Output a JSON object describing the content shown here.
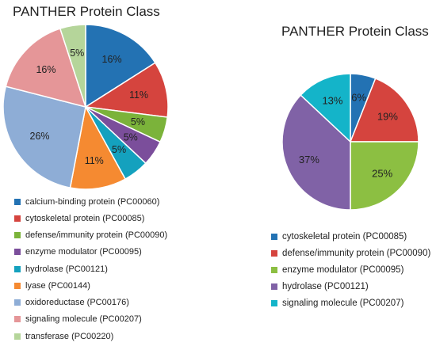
{
  "chart_data": [
    {
      "type": "pie",
      "title": "PANTHER Protein Class",
      "legend_position": "bottom",
      "slices": [
        {
          "label": "calcium-binding protein (PC00060)",
          "value": 16,
          "display": "16%",
          "color": "#2372b3"
        },
        {
          "label": "cytoskeletal protein (PC00085)",
          "value": 11,
          "display": "11%",
          "color": "#d5443e"
        },
        {
          "label": "defense/immunity protein (PC00090)",
          "value": 5,
          "display": "5%",
          "color": "#7bb33a"
        },
        {
          "label": "enzyme modulator (PC00095)",
          "value": 5,
          "display": "5%",
          "color": "#7b4e9b"
        },
        {
          "label": "hydrolase (PC00121)",
          "value": 5,
          "display": "5%",
          "color": "#14a1be"
        },
        {
          "label": "lyase (PC00144)",
          "value": 11,
          "display": "11%",
          "color": "#f58a31"
        },
        {
          "label": "oxidoreductase (PC00176)",
          "value": 26,
          "display": "26%",
          "color": "#8eadd6"
        },
        {
          "label": "signaling molecule (PC00207)",
          "value": 16,
          "display": "16%",
          "color": "#e59698"
        },
        {
          "label": "transferase (PC00220)",
          "value": 5,
          "display": "5%",
          "color": "#b5d59a"
        }
      ]
    },
    {
      "type": "pie",
      "title": "PANTHER Protein Class",
      "legend_position": "bottom",
      "slices": [
        {
          "label": "cytoskeletal protein (PC00085)",
          "value": 6,
          "display": "6%",
          "color": "#2372b3"
        },
        {
          "label": "defense/immunity protein (PC00090)",
          "value": 19,
          "display": "19%",
          "color": "#d5443e"
        },
        {
          "label": "enzyme modulator (PC00095)",
          "value": 25,
          "display": "25%",
          "color": "#8cbf42"
        },
        {
          "label": "hydrolase (PC00121)",
          "value": 37,
          "display": "37%",
          "color": "#8062a6"
        },
        {
          "label": "signaling molecule (PC00207)",
          "value": 13,
          "display": "13%",
          "color": "#14b4c9"
        }
      ]
    }
  ]
}
